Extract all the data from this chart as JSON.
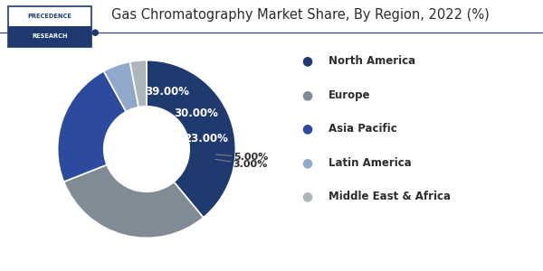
{
  "title": "Gas Chromatography Market Share, By Region, 2022 (%)",
  "slices": [
    39.0,
    30.0,
    23.0,
    5.0,
    3.0
  ],
  "labels": [
    "North America",
    "Europe",
    "Asia Pacific",
    "Latin America",
    "Middle East & Africa"
  ],
  "pct_labels": [
    "39.00%",
    "30.00%",
    "23.00%",
    "5.00%",
    "3.00%"
  ],
  "colors": [
    "#1e3a6e",
    "#808b96",
    "#2d4b9e",
    "#8fa8cc",
    "#adb5bd"
  ],
  "background_color": "#ffffff",
  "title_color": "#2c2c2c",
  "title_fontsize": 10.5,
  "legend_fontsize": 8.5,
  "pct_fontsize": 8.5,
  "donut_width": 0.52,
  "start_angle": 90,
  "line_color": "#1e3a6e",
  "logo_top_color": "#ffffff",
  "logo_bottom_color": "#1e3a6e",
  "logo_border_color": "#1e3a6e"
}
